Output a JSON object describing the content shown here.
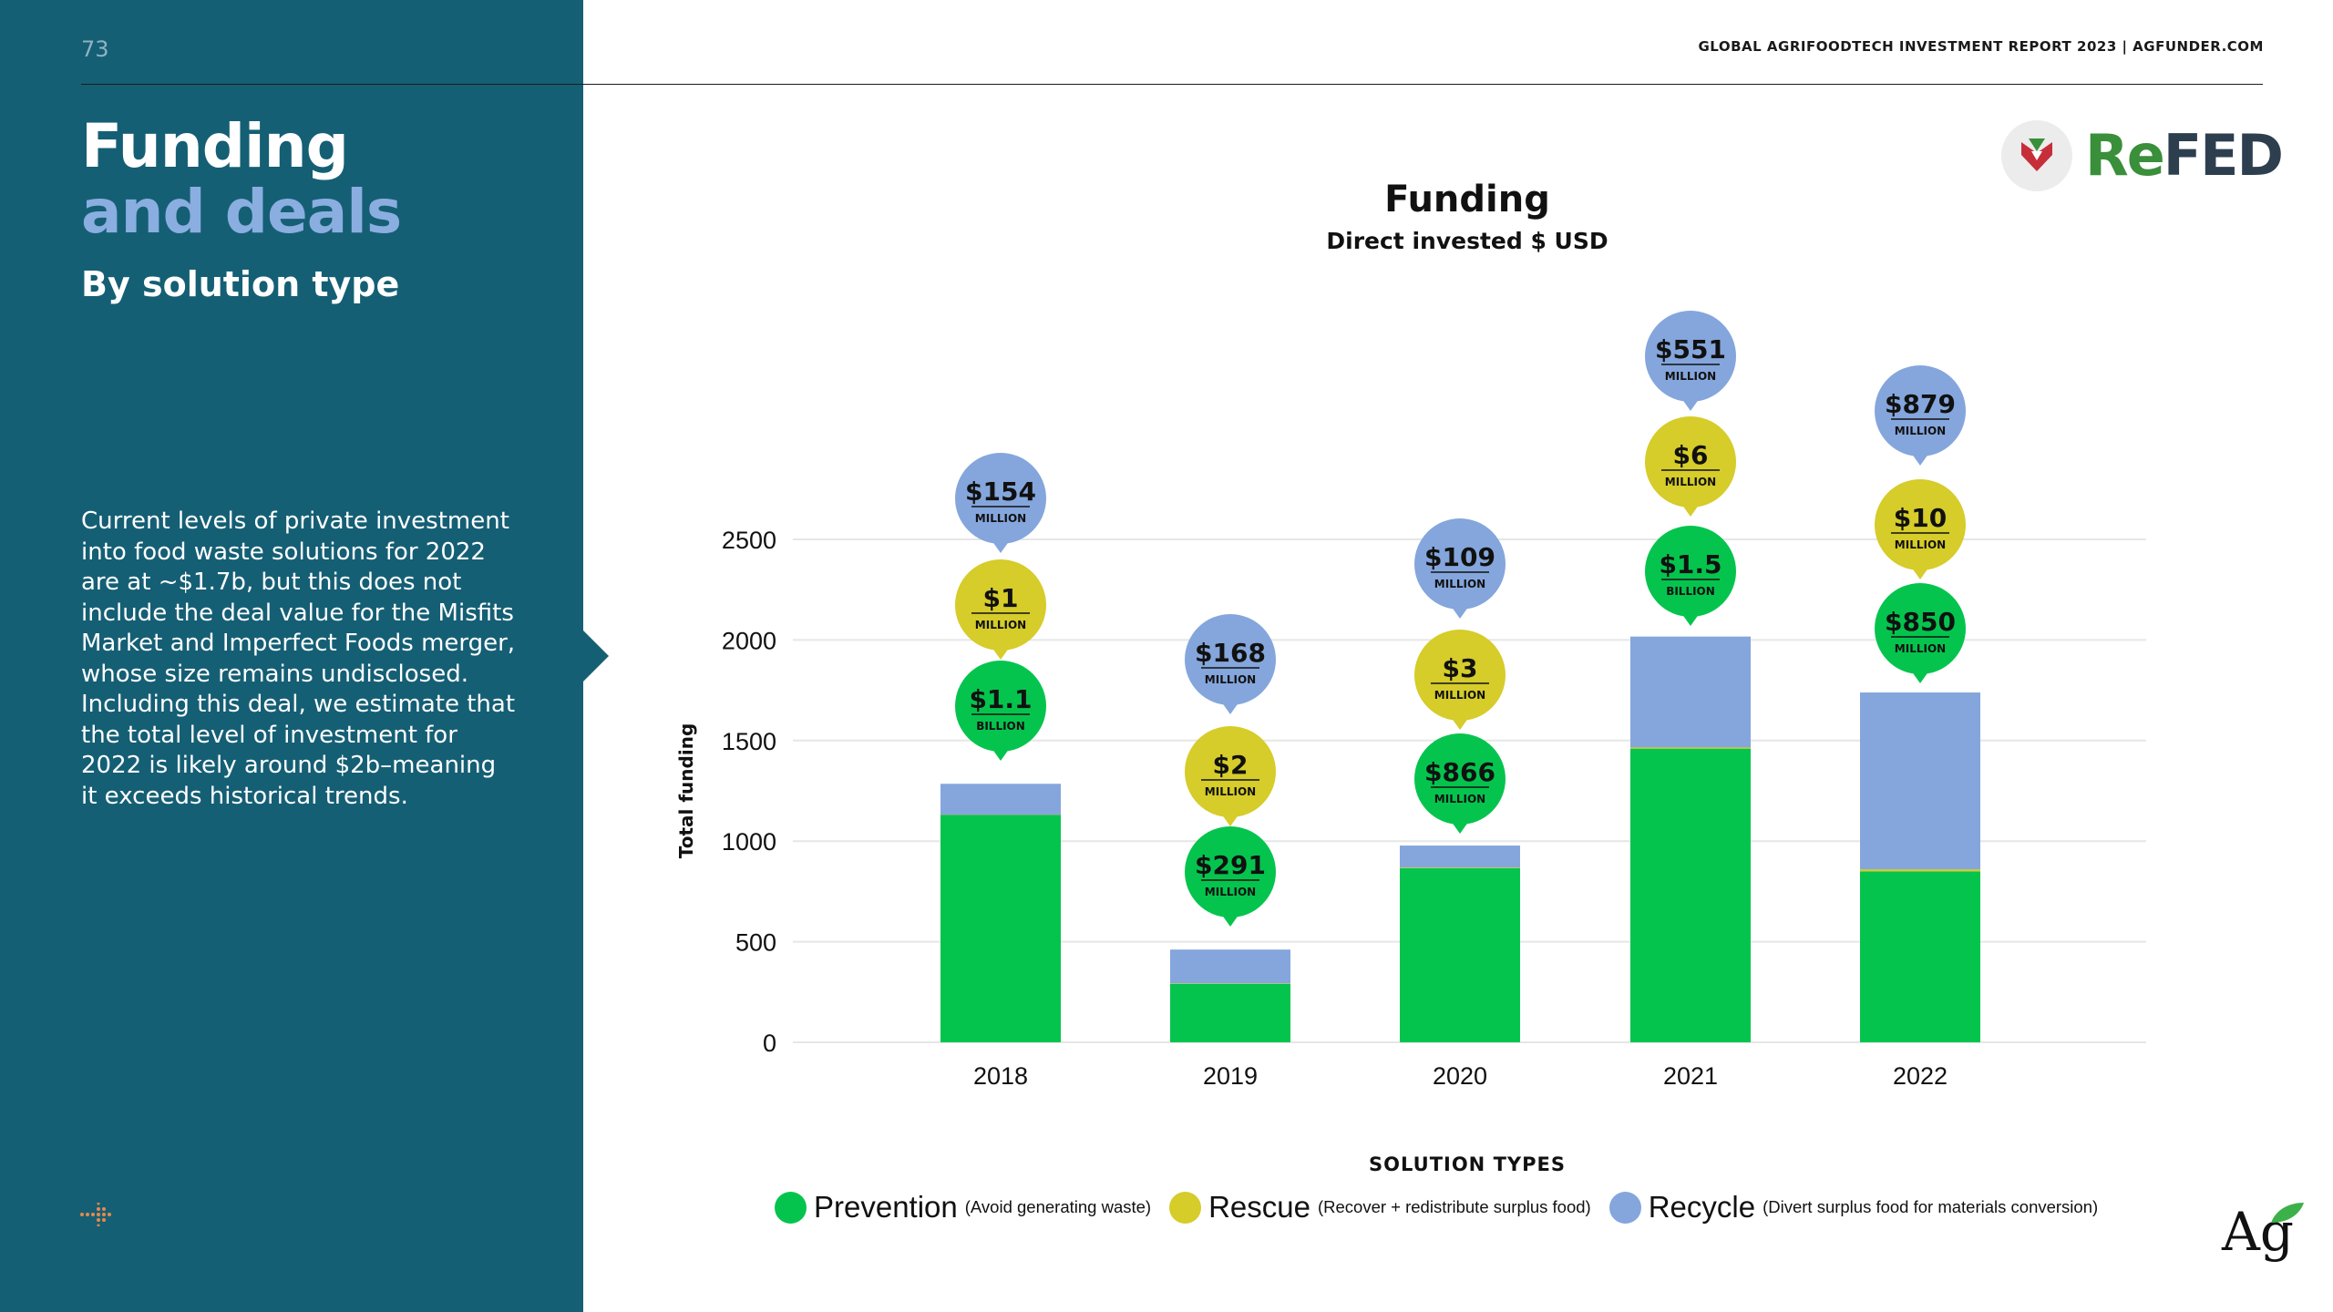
{
  "page": {
    "number": "73",
    "title_line1": "Funding",
    "title_line2": "and deals",
    "subtitle": "By solution type",
    "body": "Current levels of private investment into food waste solutions for 2022 are at ~$1.7b, but this does not include the deal value for the Misfits Market and Imperfect Foods merger, whose size remains undisclosed. Including this deal, we estimate that the total level of investment for 2022 is likely around $2b–meaning it exceeds historical trends.",
    "header": "GLOBAL AGRIFOODTECH INVESTMENT REPORT 2023 | AGFUNDER.COM",
    "logo_re": "Re",
    "logo_fed": "FED",
    "ag_logo": "Ag"
  },
  "colors": {
    "sidebar": "#155f75",
    "prevention": "#05c44e",
    "rescue": "#d6cc2a",
    "recycle": "#84a6dc"
  },
  "chart_data": {
    "type": "bar",
    "stacked": true,
    "title": "Funding",
    "subtitle": "Direct invested $ USD",
    "ylabel": "Total funding",
    "xlabel": "",
    "ylim": [
      0,
      2500
    ],
    "yticks": [
      "0",
      "500",
      "1000",
      "1500",
      "2000",
      "2500"
    ],
    "grid": true,
    "categories": [
      "2018",
      "2019",
      "2020",
      "2021",
      "2022"
    ],
    "series": [
      {
        "name": "Prevention",
        "values": [
          1130,
          291,
          866,
          1460,
          850
        ]
      },
      {
        "name": "Rescue",
        "values": [
          1,
          2,
          3,
          6,
          10
        ]
      },
      {
        "name": "Recycle",
        "values": [
          154,
          168,
          109,
          551,
          879
        ]
      }
    ],
    "bubbles": [
      [
        {
          "value": "$1.1",
          "unit": "BILLION",
          "series": "prevention"
        },
        {
          "value": "$1",
          "unit": "MILLION",
          "series": "rescue"
        },
        {
          "value": "$154",
          "unit": "MILLION",
          "series": "recycle"
        }
      ],
      [
        {
          "value": "$291",
          "unit": "MILLION",
          "series": "prevention"
        },
        {
          "value": "$2",
          "unit": "MILLION",
          "series": "rescue"
        },
        {
          "value": "$168",
          "unit": "MILLION",
          "series": "recycle"
        }
      ],
      [
        {
          "value": "$866",
          "unit": "MILLION",
          "series": "prevention"
        },
        {
          "value": "$3",
          "unit": "MILLION",
          "series": "rescue"
        },
        {
          "value": "$109",
          "unit": "MILLION",
          "series": "recycle"
        }
      ],
      [
        {
          "value": "$1.5",
          "unit": "BILLION",
          "series": "prevention"
        },
        {
          "value": "$6",
          "unit": "MILLION",
          "series": "rescue"
        },
        {
          "value": "$551",
          "unit": "MILLION",
          "series": "recycle"
        }
      ],
      [
        {
          "value": "$850",
          "unit": "MILLION",
          "series": "prevention"
        },
        {
          "value": "$10",
          "unit": "MILLION",
          "series": "rescue"
        },
        {
          "value": "$879",
          "unit": "MILLION",
          "series": "recycle"
        }
      ]
    ],
    "legend_title": "SOLUTION TYPES",
    "legend": [
      {
        "name": "Prevention",
        "desc": "(Avoid generating waste)",
        "color": "#05c44e"
      },
      {
        "name": "Rescue",
        "desc": "(Recover + redistribute surplus food)",
        "color": "#d6cc2a"
      },
      {
        "name": "Recycle",
        "desc": "(Divert surplus food for materials conversion)",
        "color": "#84a6dc"
      }
    ]
  }
}
